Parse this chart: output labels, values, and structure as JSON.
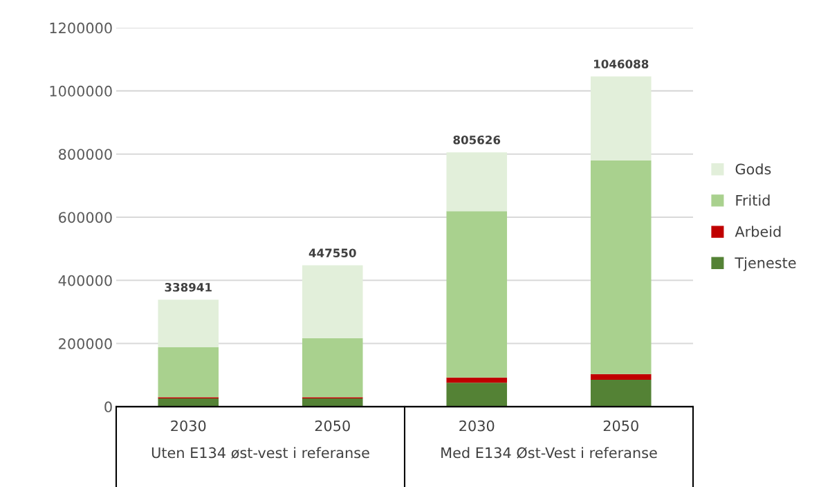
{
  "chart_data": {
    "type": "bar",
    "stacked": true,
    "categories": [
      "2030",
      "2050",
      "2030",
      "2050"
    ],
    "series": [
      {
        "name": "Tjeneste",
        "color": "#548235",
        "values": [
          26000,
          26000,
          76000,
          85000
        ]
      },
      {
        "name": "Arbeid",
        "color": "#c00000",
        "values": [
          4000,
          4000,
          16000,
          18000
        ]
      },
      {
        "name": "Fritid",
        "color": "#a9d18e",
        "values": [
          158000,
          187000,
          527000,
          677000
        ]
      },
      {
        "name": "Gods",
        "color": "#e2efda",
        "values": [
          150941,
          230550,
          186626,
          266088
        ]
      }
    ],
    "totals": [
      "338941",
      "447550",
      "805626",
      "1046088"
    ],
    "annotations": [
      "Uten E134 øst-vest i referanse",
      "Med E134 Øst-Vest i referanse"
    ],
    "ylim": [
      0,
      1200000
    ],
    "yticks": [
      0,
      200000,
      400000,
      600000,
      800000,
      1000000,
      1200000
    ],
    "grid": "y",
    "legend": "right"
  }
}
